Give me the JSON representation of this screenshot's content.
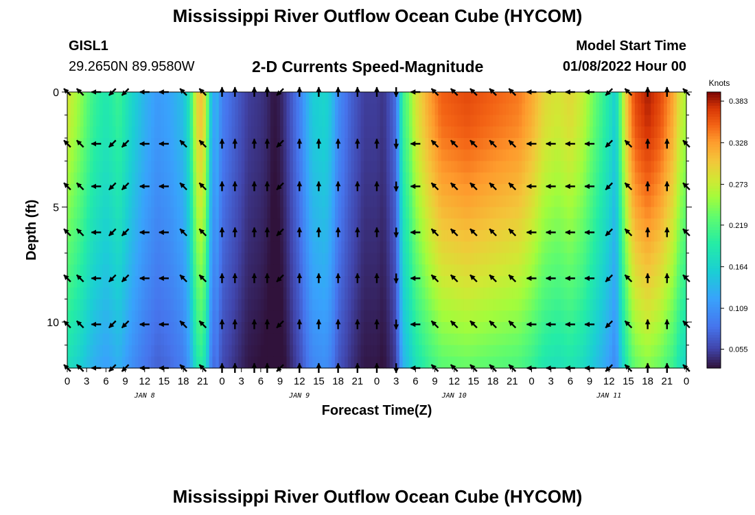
{
  "header": {
    "title": "Mississippi River Outflow Ocean Cube (HYCOM)",
    "station": "GISL1",
    "coords": "29.2650N  89.9580W",
    "subtitle": "2-D Currents Speed-Magnitude",
    "model_start_label": "Model Start Time",
    "model_start_value": "01/08/2022 Hour 00"
  },
  "footer": {
    "title": "Mississippi River Outflow Ocean Cube (HYCOM)"
  },
  "chart_data": {
    "type": "heatmap",
    "xlabel": "Forecast Time(Z)",
    "ylabel": "Depth (ft)",
    "x_tick_labels": [
      "0",
      "3",
      "6",
      "9",
      "12",
      "15",
      "18",
      "21",
      "0",
      "3",
      "6",
      "9",
      "12",
      "15",
      "18",
      "21",
      "0",
      "3",
      "6",
      "9",
      "12",
      "15",
      "18",
      "21",
      "0",
      "3",
      "6",
      "9",
      "12",
      "15",
      "18",
      "21",
      "0"
    ],
    "day_labels": [
      {
        "label": "JAN 8",
        "hour": 12
      },
      {
        "label": "JAN 9",
        "hour": 36
      },
      {
        "label": "JAN 10",
        "hour": 60
      },
      {
        "label": "JAN 11",
        "hour": 84
      }
    ],
    "xlim": [
      0,
      96
    ],
    "y_ticks": [
      0,
      5,
      10
    ],
    "ylim": [
      0,
      12
    ],
    "colorbar": {
      "unit": "Knots",
      "ticks": [
        0.383,
        0.328,
        0.273,
        0.219,
        0.164,
        0.109,
        0.055
      ],
      "range": [
        0.03,
        0.395
      ]
    },
    "speed_profile": [
      [
        0,
        0.27
      ],
      [
        2,
        0.24
      ],
      [
        4,
        0.2
      ],
      [
        6,
        0.18
      ],
      [
        8,
        0.2
      ],
      [
        10,
        0.16
      ],
      [
        12,
        0.13
      ],
      [
        14,
        0.11
      ],
      [
        16,
        0.12
      ],
      [
        18,
        0.14
      ],
      [
        19,
        0.18
      ],
      [
        20,
        0.28
      ],
      [
        21,
        0.3
      ],
      [
        22,
        0.2
      ],
      [
        22.5,
        0.1
      ],
      [
        23,
        0.14
      ],
      [
        24,
        0.09
      ],
      [
        26,
        0.07
      ],
      [
        28,
        0.05
      ],
      [
        30,
        0.045
      ],
      [
        31,
        0.04
      ],
      [
        32,
        0.03
      ],
      [
        33,
        0.035
      ],
      [
        34,
        0.05
      ],
      [
        36,
        0.09
      ],
      [
        38,
        0.15
      ],
      [
        40,
        0.16
      ],
      [
        41,
        0.14
      ],
      [
        42,
        0.1
      ],
      [
        44,
        0.07
      ],
      [
        46,
        0.05
      ],
      [
        48,
        0.05
      ],
      [
        49,
        0.045
      ],
      [
        50,
        0.06
      ],
      [
        51,
        0.08
      ],
      [
        52,
        0.2
      ],
      [
        53,
        0.23
      ],
      [
        54,
        0.27
      ],
      [
        56,
        0.31
      ],
      [
        58,
        0.34
      ],
      [
        62,
        0.35
      ],
      [
        66,
        0.34
      ],
      [
        70,
        0.33
      ],
      [
        72,
        0.31
      ],
      [
        74,
        0.28
      ],
      [
        76,
        0.27
      ],
      [
        78,
        0.28
      ],
      [
        80,
        0.26
      ],
      [
        82,
        0.22
      ],
      [
        84,
        0.18
      ],
      [
        85,
        0.15
      ],
      [
        86,
        0.24
      ],
      [
        87,
        0.31
      ],
      [
        88,
        0.35
      ],
      [
        90,
        0.37
      ],
      [
        92,
        0.35
      ],
      [
        94,
        0.31
      ],
      [
        95,
        0.27
      ],
      [
        96,
        0.25
      ]
    ],
    "depth_factor": [
      [
        0,
        1.04
      ],
      [
        1.5,
        1.02
      ],
      [
        3,
        0.98
      ],
      [
        5,
        0.92
      ],
      [
        7,
        0.85
      ],
      [
        9,
        0.78
      ],
      [
        10.5,
        0.72
      ],
      [
        12,
        0.66
      ]
    ],
    "arrow_depths": [
      0,
      2.25,
      4.1,
      6.1,
      8.1,
      10.1,
      12
    ],
    "arrow_hours": [
      0,
      2,
      4.5,
      7,
      9,
      12,
      15,
      18,
      21,
      24,
      26,
      29,
      31,
      33,
      36,
      39,
      42,
      45,
      48,
      51,
      54,
      57,
      60,
      63,
      66,
      69,
      72,
      75,
      78,
      81,
      84,
      87,
      90,
      93,
      96
    ],
    "arrow_dir_deg": [
      225,
      225,
      270,
      315,
      315,
      270,
      270,
      225,
      225,
      180,
      180,
      180,
      180,
      315,
      180,
      180,
      180,
      180,
      180,
      0,
      270,
      225,
      225,
      225,
      225,
      225,
      270,
      270,
      270,
      270,
      315,
      225,
      180,
      180,
      225
    ]
  }
}
